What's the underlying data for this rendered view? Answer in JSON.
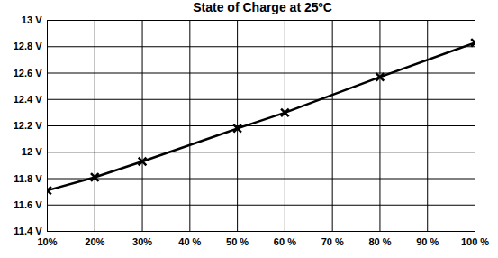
{
  "chart_data": {
    "type": "line",
    "title": "State of Charge at 25ºC",
    "x": [
      10,
      20,
      30,
      50,
      60,
      80,
      100
    ],
    "values": [
      11.71,
      11.81,
      11.93,
      12.18,
      12.3,
      12.57,
      12.83
    ],
    "color": "#000000",
    "marker": "x",
    "xlim": [
      10,
      100
    ],
    "xticks": [
      {
        "value": 10,
        "label": "10%"
      },
      {
        "value": 20,
        "label": "20%"
      },
      {
        "value": 30,
        "label": "30%"
      },
      {
        "value": 40,
        "label": "40 %"
      },
      {
        "value": 50,
        "label": "50 %"
      },
      {
        "value": 60,
        "label": "60 %"
      },
      {
        "value": 70,
        "label": "70 %"
      },
      {
        "value": 80,
        "label": "80 %"
      },
      {
        "value": 90,
        "label": "90 %"
      },
      {
        "value": 100,
        "label": "100 %"
      }
    ],
    "ylim": [
      11.4,
      13
    ],
    "yticks": [
      {
        "value": 11.4,
        "label": "11.4 V"
      },
      {
        "value": 11.6,
        "label": "11.6 V"
      },
      {
        "value": 11.8,
        "label": "11.8 V"
      },
      {
        "value": 12,
        "label": "12 V"
      },
      {
        "value": 12.2,
        "label": "12.2 V"
      },
      {
        "value": 12.4,
        "label": "12.4 V"
      },
      {
        "value": 12.6,
        "label": "12.6 V"
      },
      {
        "value": 12.8,
        "label": "12.8 V"
      },
      {
        "value": 13,
        "label": "13 V"
      }
    ],
    "grid": true
  }
}
